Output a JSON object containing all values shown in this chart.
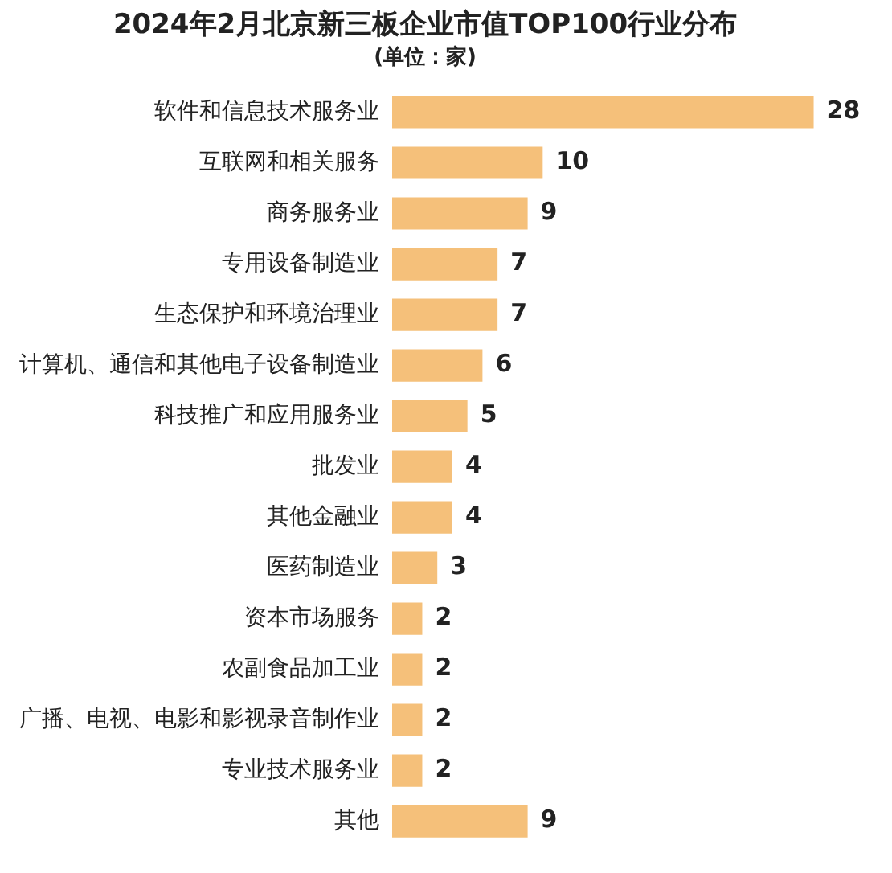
{
  "chart_data": {
    "type": "bar",
    "orientation": "horizontal",
    "title": "2024年2月北京新三板企业市值TOP100行业分布",
    "subtitle": "(单位：家)",
    "categories": [
      "软件和信息技术服务业",
      "互联网和相关服务",
      "商务服务业",
      "专用设备制造业",
      "生态保护和环境治理业",
      "计算机、通信和其他电子设备制造业",
      "科技推广和应用服务业",
      "批发业",
      "其他金融业",
      "医药制造业",
      "资本市场服务",
      "农副食品加工业",
      "广播、电视、电影和影视录音制作业",
      "专业技术服务业",
      "其他"
    ],
    "values": [
      28,
      10,
      9,
      7,
      7,
      6,
      5,
      4,
      4,
      3,
      2,
      2,
      2,
      2,
      9
    ],
    "color": "#f5c07a",
    "data_labels": true,
    "tick_labels": "y"
  }
}
